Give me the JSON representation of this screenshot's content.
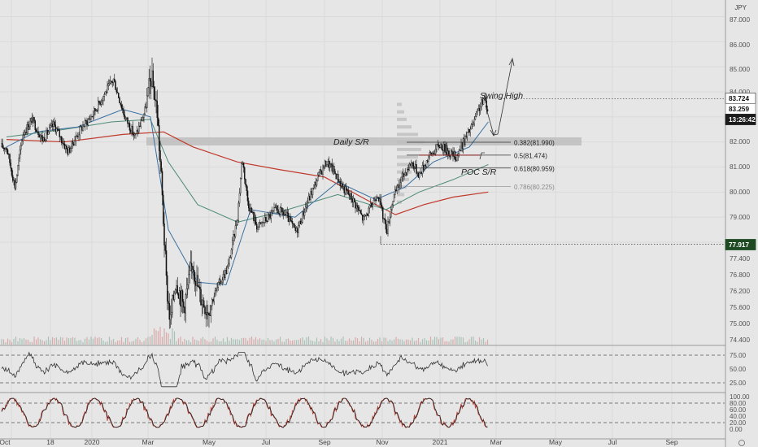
{
  "chart_data": {
    "type": "candlestick",
    "currency": "JPY",
    "colors": {
      "up": "#f2f2f2",
      "down": "#111111",
      "last_price_badge": "#ffffff",
      "countdown_badge": "#1c1c1c",
      "low_badge": "#1e4a22",
      "ma_long": "#c0392b",
      "ma_mid": "#4d8a78",
      "ma_short": "#3a6fa0",
      "rsi_line": "#333333",
      "stoch_k": "#c0392b",
      "stoch_d": "#222222"
    },
    "price_axis": {
      "ticks": [
        "87.000",
        "86.000",
        "85.000",
        "84.000",
        "83.259",
        "82.000",
        "81.000",
        "80.000",
        "79.000",
        "78.000",
        "77.400",
        "76.800",
        "76.200",
        "75.600",
        "75.000",
        "74.400"
      ]
    },
    "time_axis": [
      "Oct",
      "18",
      "2020",
      "Mar",
      "May",
      "Jul",
      "Sep",
      "Nov",
      "2021",
      "Mar",
      "May",
      "Jul",
      "Sep"
    ],
    "rsi_axis": [
      "75.00",
      "50.00",
      "25.00"
    ],
    "stoch_axis": [
      "100.00",
      "80.00",
      "60.00",
      "40.00",
      "20.00",
      "0.00"
    ],
    "badges": {
      "swing_high": "83.724",
      "last_price": "83.259",
      "countdown": "13:26:42",
      "swing_low": "77.917"
    },
    "fib_levels": [
      {
        "label": "0.382(81.990)",
        "price": 81.99
      },
      {
        "label": "0.5(81.474)",
        "price": 81.474
      },
      {
        "label": "0.618(80.959)",
        "price": 80.959
      },
      {
        "label": "0.786(80.225)",
        "price": 80.225
      }
    ],
    "annotations": {
      "swing_high": "Swing High",
      "daily_sr": "Daily S/R",
      "poc_sr": "POC S/R"
    },
    "key_levels": {
      "swing_high": 83.724,
      "swing_low": 77.917,
      "daily_sr_low": 81.95,
      "daily_sr_high": 82.15
    },
    "price_path": [
      [
        "2019-10-01",
        81.8
      ],
      [
        "2019-10-10",
        80.2
      ],
      [
        "2019-10-18",
        82.3
      ],
      [
        "2019-10-28",
        82.9
      ],
      [
        "2019-11-08",
        82.1
      ],
      [
        "2019-11-20",
        82.7
      ],
      [
        "2019-12-05",
        81.6
      ],
      [
        "2019-12-18",
        82.5
      ],
      [
        "2019-12-31",
        83.1
      ],
      [
        "2020-01-12",
        83.9
      ],
      [
        "2020-01-22",
        84.5
      ],
      [
        "2020-02-03",
        83.0
      ],
      [
        "2020-02-14",
        82.2
      ],
      [
        "2020-02-24",
        83.2
      ],
      [
        "2020-03-02",
        84.6
      ],
      [
        "2020-03-08",
        83.3
      ],
      [
        "2020-03-13",
        80.2
      ],
      [
        "2020-03-18",
        76.3
      ],
      [
        "2020-03-22",
        74.8
      ],
      [
        "2020-03-28",
        76.6
      ],
      [
        "2020-04-05",
        75.4
      ],
      [
        "2020-04-15",
        77.2
      ],
      [
        "2020-04-22",
        75.9
      ],
      [
        "2020-05-01",
        75.3
      ],
      [
        "2020-05-12",
        76.3
      ],
      [
        "2020-05-22",
        77.0
      ],
      [
        "2020-06-01",
        79.0
      ],
      [
        "2020-06-06",
        81.4
      ],
      [
        "2020-06-12",
        79.6
      ],
      [
        "2020-06-22",
        78.6
      ],
      [
        "2020-07-01",
        78.9
      ],
      [
        "2020-07-12",
        79.3
      ],
      [
        "2020-07-22",
        79.1
      ],
      [
        "2020-08-02",
        78.4
      ],
      [
        "2020-08-14",
        79.6
      ],
      [
        "2020-08-25",
        80.6
      ],
      [
        "2020-09-03",
        81.2
      ],
      [
        "2020-09-10",
        80.9
      ],
      [
        "2020-09-20",
        80.2
      ],
      [
        "2020-10-01",
        79.7
      ],
      [
        "2020-10-12",
        78.9
      ],
      [
        "2020-10-20",
        79.4
      ],
      [
        "2020-10-27",
        80.0
      ],
      [
        "2020-11-02",
        79.0
      ],
      [
        "2020-11-06",
        78.5
      ],
      [
        "2020-11-12",
        79.7
      ],
      [
        "2020-11-22",
        80.6
      ],
      [
        "2020-12-02",
        81.2
      ],
      [
        "2020-12-10",
        80.7
      ],
      [
        "2020-12-20",
        81.4
      ],
      [
        "2021-01-01",
        81.9
      ],
      [
        "2021-01-10",
        81.6
      ],
      [
        "2021-01-18",
        81.4
      ],
      [
        "2021-01-27",
        82.1
      ],
      [
        "2021-02-05",
        82.7
      ],
      [
        "2021-02-12",
        83.4
      ],
      [
        "2021-02-17",
        83.7
      ],
      [
        "2021-02-21",
        83.26
      ]
    ],
    "ma_long": [
      [
        "2019-10-01",
        82.1
      ],
      [
        "2019-12-01",
        82.0
      ],
      [
        "2020-02-01",
        82.3
      ],
      [
        "2020-03-15",
        82.4
      ],
      [
        "2020-04-15",
        81.8
      ],
      [
        "2020-06-01",
        81.2
      ],
      [
        "2020-07-15",
        80.9
      ],
      [
        "2020-09-01",
        80.6
      ],
      [
        "2020-10-15",
        79.7
      ],
      [
        "2020-11-15",
        79.1
      ],
      [
        "2020-12-15",
        79.5
      ],
      [
        "2021-01-15",
        79.8
      ],
      [
        "2021-02-21",
        80.0
      ]
    ],
    "ma_mid": [
      [
        "2019-10-01",
        82.2
      ],
      [
        "2019-12-01",
        82.5
      ],
      [
        "2020-01-20",
        82.8
      ],
      [
        "2020-03-01",
        82.9
      ],
      [
        "2020-03-20",
        81.2
      ],
      [
        "2020-04-20",
        79.5
      ],
      [
        "2020-06-01",
        78.8
      ],
      [
        "2020-07-15",
        79.2
      ],
      [
        "2020-09-15",
        79.9
      ],
      [
        "2020-11-05",
        79.3
      ],
      [
        "2020-12-10",
        80.0
      ],
      [
        "2021-01-15",
        80.5
      ],
      [
        "2021-02-21",
        81.1
      ]
    ],
    "ma_short": [
      [
        "2019-10-01",
        81.8
      ],
      [
        "2019-11-01",
        82.4
      ],
      [
        "2019-12-15",
        82.6
      ],
      [
        "2020-02-01",
        83.3
      ],
      [
        "2020-03-01",
        83.0
      ],
      [
        "2020-03-20",
        78.5
      ],
      [
        "2020-04-20",
        76.4
      ],
      [
        "2020-05-20",
        76.3
      ],
      [
        "2020-06-15",
        79.3
      ],
      [
        "2020-08-01",
        79.0
      ],
      [
        "2020-09-15",
        80.4
      ],
      [
        "2020-10-25",
        79.7
      ],
      [
        "2020-11-25",
        80.2
      ],
      [
        "2020-12-25",
        81.2
      ],
      [
        "2021-02-01",
        81.8
      ],
      [
        "2021-02-21",
        82.8
      ]
    ]
  }
}
